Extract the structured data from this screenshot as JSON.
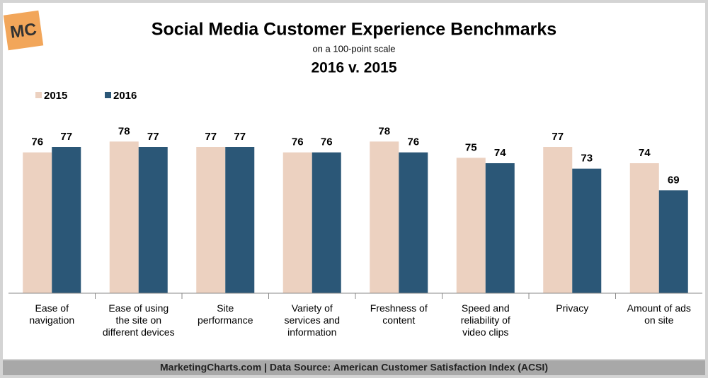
{
  "logo": "MC",
  "chart_data": {
    "type": "bar",
    "title": "Social Media Customer Experience Benchmarks",
    "subtitle": "on a 100-point scale",
    "subtitle2": "2016 v. 2015",
    "categories": [
      "Ease of\nnavigation",
      "Ease of using\nthe site on\ndifferent devices",
      "Site\nperformance",
      "Variety of\nservices and\ninformation",
      "Freshness of\ncontent",
      "Speed and\nreliability of\nvideo clips",
      "Privacy",
      "Amount of ads\non site"
    ],
    "series": [
      {
        "name": "2015",
        "color": "#ecd1c0",
        "values": [
          76,
          78,
          77,
          76,
          78,
          75,
          77,
          74
        ]
      },
      {
        "name": "2016",
        "color": "#2b5777",
        "values": [
          77,
          77,
          77,
          76,
          76,
          74,
          73,
          69
        ]
      }
    ],
    "ylim": [
      50,
      80
    ],
    "legend": "top-left",
    "source": "MarketingCharts.com | Data Source: American Customer Satisfaction Index (ACSI)"
  }
}
